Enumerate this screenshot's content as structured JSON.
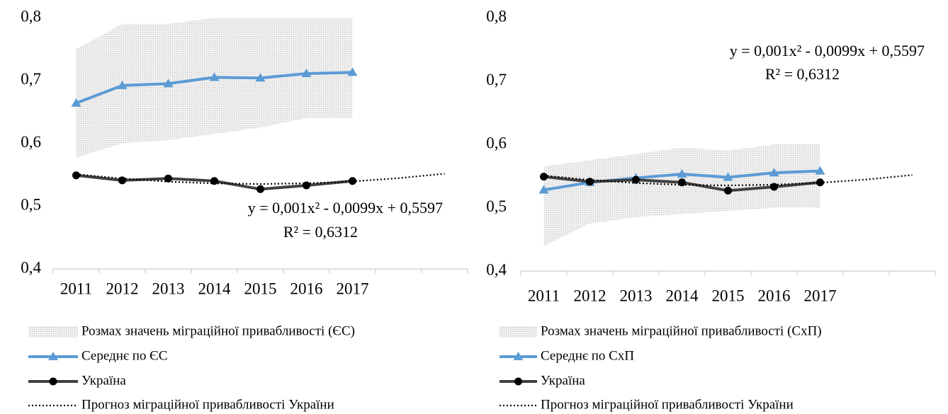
{
  "chart_data": [
    {
      "type": "line",
      "categories": [
        "2011",
        "2012",
        "2013",
        "2014",
        "2015",
        "2016",
        "2017",
        null,
        null
      ],
      "ylim": [
        0.4,
        0.8
      ],
      "yticks": [
        {
          "value": 0.4,
          "label": "0,4"
        },
        {
          "value": 0.5,
          "label": "0,5"
        },
        {
          "value": 0.6,
          "label": "0,6"
        },
        {
          "value": 0.7,
          "label": "0,7"
        },
        {
          "value": 0.8,
          "label": "0,8"
        }
      ],
      "trend_equation": "y = 0,001x² - 0,0099x + 0,5597",
      "trend_r2": "R² = 0,6312",
      "series": [
        {
          "name": "Розмах значень міграційної привабливості (ЄС)",
          "style": "band",
          "color": "#d9d9d9",
          "low": [
            0.577,
            0.6,
            0.605,
            0.615,
            0.625,
            0.64,
            0.64,
            null,
            null
          ],
          "high": [
            0.75,
            0.79,
            0.79,
            0.8,
            0.8,
            0.8,
            0.8,
            null,
            null
          ]
        },
        {
          "name": "Середнє по ЄС",
          "style": "triangle",
          "color": "#5b9bd5",
          "values": [
            0.664,
            0.692,
            0.695,
            0.705,
            0.704,
            0.711,
            0.713,
            null,
            null
          ]
        },
        {
          "name": "Україна",
          "style": "circle",
          "color": "#404040",
          "values": [
            0.549,
            0.541,
            0.544,
            0.54,
            0.527,
            0.533,
            0.54,
            null,
            null
          ]
        },
        {
          "name": "Прогноз міграційної привабливості України",
          "style": "dotted",
          "color": "#000000",
          "values": [
            0.5508,
            0.5439,
            0.539,
            0.5361,
            0.5352,
            0.5363,
            0.5394,
            0.5445,
            0.5516
          ]
        }
      ]
    },
    {
      "type": "line",
      "categories": [
        "2011",
        "2012",
        "2013",
        "2014",
        "2015",
        "2016",
        "2017",
        null,
        null
      ],
      "ylim": [
        0.4,
        0.8
      ],
      "yticks": [
        {
          "value": 0.4,
          "label": "0,4"
        },
        {
          "value": 0.5,
          "label": "0,5"
        },
        {
          "value": 0.6,
          "label": "0,6"
        },
        {
          "value": 0.7,
          "label": "0,7"
        },
        {
          "value": 0.8,
          "label": "0,8"
        }
      ],
      "trend_equation": "y = 0,001x² - 0,0099x + 0,5597",
      "trend_r2": "R² = 0,6312",
      "series": [
        {
          "name": "Розмах значень міграційної привабливості (СхП)",
          "style": "band",
          "color": "#d9d9d9",
          "low": [
            0.44,
            0.475,
            0.485,
            0.49,
            0.495,
            0.5,
            0.5,
            null,
            null
          ],
          "high": [
            0.565,
            0.575,
            0.585,
            0.595,
            0.59,
            0.6,
            0.6,
            null,
            null
          ]
        },
        {
          "name": "Середнє по СхП",
          "style": "triangle",
          "color": "#5b9bd5",
          "values": [
            0.528,
            0.54,
            0.547,
            0.553,
            0.548,
            0.555,
            0.558,
            null,
            null
          ]
        },
        {
          "name": "Україна",
          "style": "circle",
          "color": "#404040",
          "values": [
            0.549,
            0.541,
            0.544,
            0.54,
            0.527,
            0.533,
            0.54,
            null,
            null
          ]
        },
        {
          "name": "Прогноз міграційної привабливості України",
          "style": "dotted",
          "color": "#000000",
          "values": [
            0.5508,
            0.5439,
            0.539,
            0.5361,
            0.5352,
            0.5363,
            0.5394,
            0.5445,
            0.5516
          ]
        }
      ]
    }
  ]
}
